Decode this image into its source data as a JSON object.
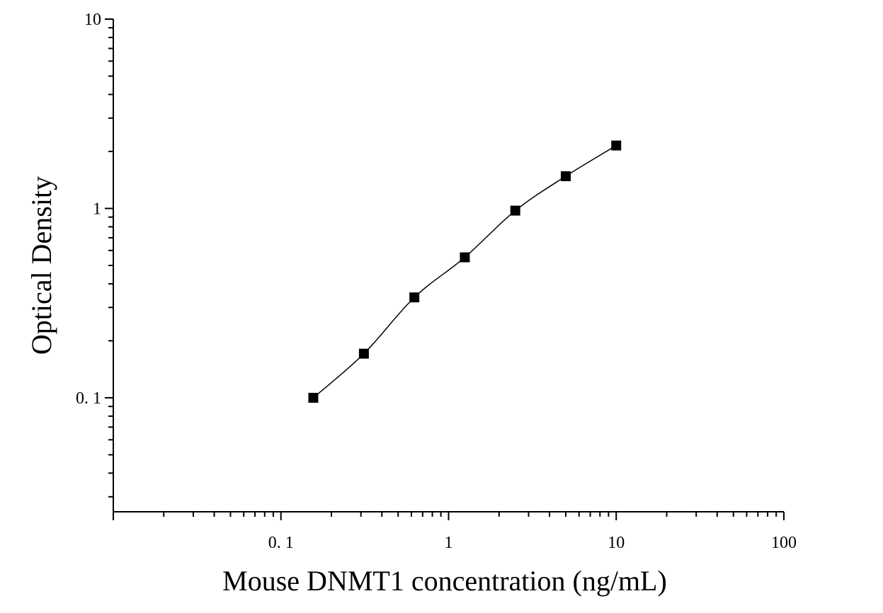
{
  "chart_data": {
    "type": "scatter",
    "title": "",
    "xlabel": "Mouse DNMT1 concentration (ng/mL)",
    "ylabel": "Optical Density",
    "x_scale": "log",
    "y_scale": "log",
    "xlim": [
      0.01,
      100
    ],
    "ylim": [
      0.025,
      10
    ],
    "x_ticks": [
      {
        "value": 0.1,
        "label": "0. 1"
      },
      {
        "value": 1,
        "label": "1"
      },
      {
        "value": 10,
        "label": "10"
      },
      {
        "value": 100,
        "label": "100"
      }
    ],
    "y_ticks": [
      {
        "value": 0.1,
        "label": "0. 1"
      },
      {
        "value": 1,
        "label": "1"
      },
      {
        "value": 10,
        "label": "10"
      }
    ],
    "grid": false,
    "legend": "none",
    "marker": "square",
    "marker_color": "#000000",
    "line_color": "#000000",
    "series": [
      {
        "points": [
          {
            "x": 0.156,
            "y": 0.1
          },
          {
            "x": 0.3125,
            "y": 0.171
          },
          {
            "x": 0.625,
            "y": 0.339
          },
          {
            "x": 1.25,
            "y": 0.552
          },
          {
            "x": 2.5,
            "y": 0.974
          },
          {
            "x": 5,
            "y": 1.48
          },
          {
            "x": 10,
            "y": 2.15
          }
        ]
      }
    ]
  }
}
